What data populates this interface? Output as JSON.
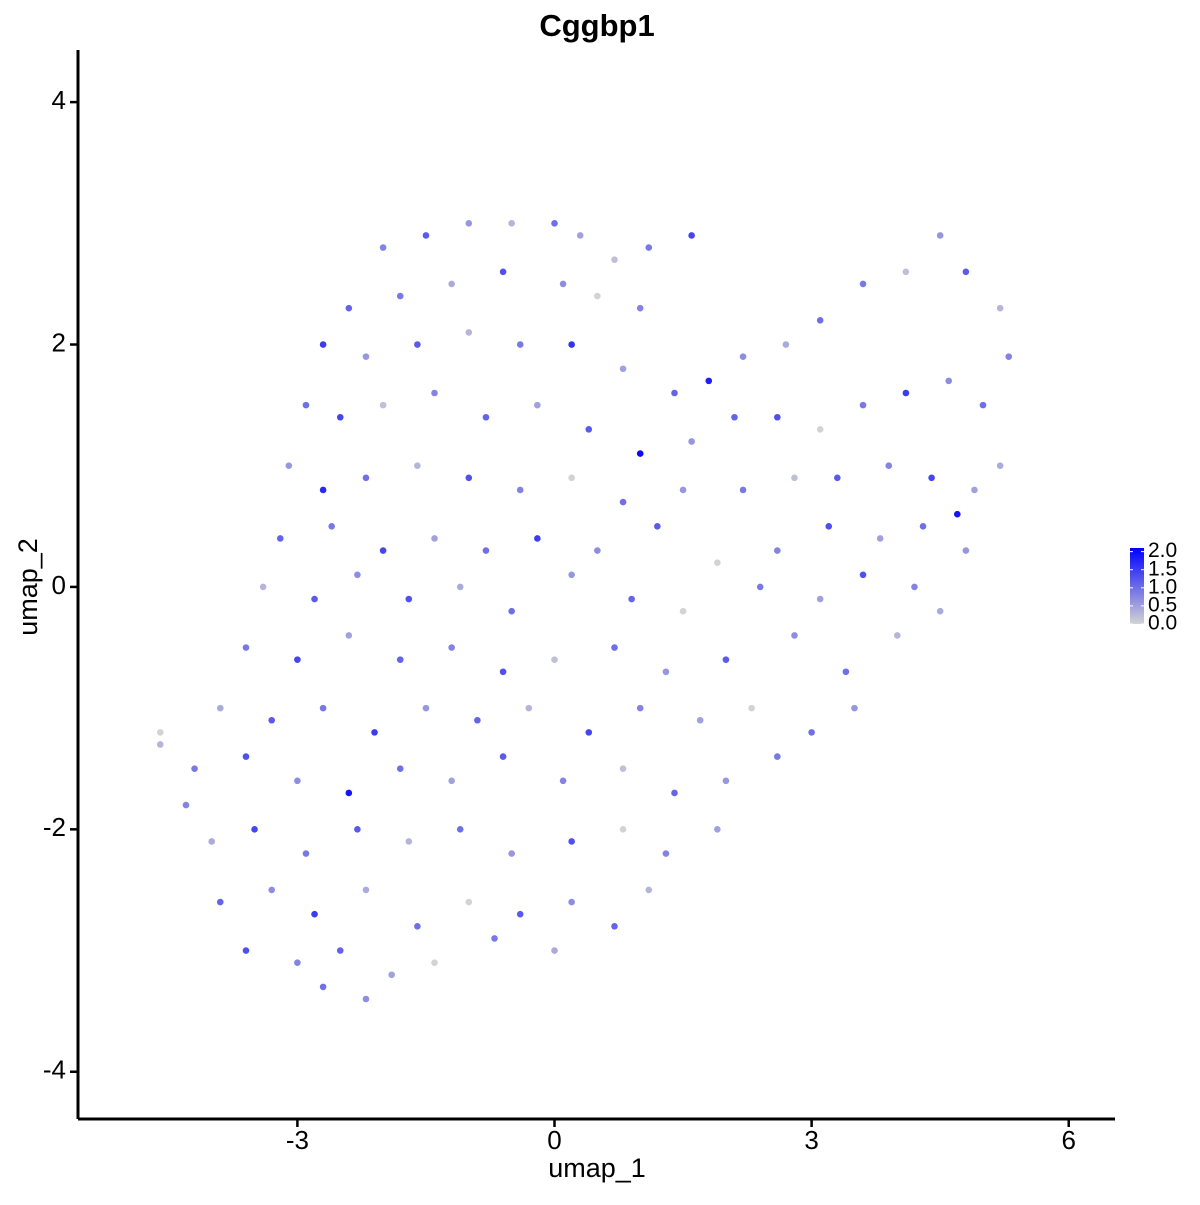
{
  "chart_data": {
    "type": "scatter",
    "title": "Cggbp1",
    "x_label": "umap_1",
    "y_label": "umap_2",
    "xlim": [
      -5.56,
      6.54
    ],
    "ylim": [
      -4.39,
      4.43
    ],
    "xticks": [
      -3,
      0,
      3,
      6
    ],
    "yticks": [
      -4,
      -2,
      0,
      2,
      4
    ],
    "color_scale": {
      "low": "#d3d3d3",
      "high": "#0000ff",
      "lim": [
        0,
        2.1
      ],
      "ticks": [
        {
          "value": 0,
          "label": "0.0"
        },
        {
          "value": 0.5,
          "label": "0.5"
        },
        {
          "value": 1,
          "label": "1.0"
        },
        {
          "value": 1.5,
          "label": "1.5"
        },
        {
          "value": 2,
          "label": "2.0"
        }
      ]
    },
    "x": [
      -2.0,
      -1.5,
      -1.0,
      -0.5,
      0.0,
      0.3,
      0.7,
      1.1,
      1.6,
      -2.4,
      -1.8,
      -1.2,
      -0.6,
      0.1,
      0.5,
      1.0,
      -2.7,
      -2.2,
      -1.6,
      -1.0,
      -0.4,
      0.2,
      0.8,
      1.4,
      1.8,
      2.2,
      2.7,
      3.1,
      3.6,
      4.1,
      4.5,
      4.8,
      5.2,
      5.3,
      -2.9,
      -2.5,
      -2.0,
      -1.4,
      -0.8,
      -0.2,
      0.4,
      1.0,
      1.6,
      2.1,
      2.6,
      3.1,
      3.6,
      4.1,
      4.6,
      5.0,
      5.2,
      -3.1,
      -2.7,
      -2.2,
      -1.6,
      -1.0,
      -0.4,
      0.2,
      0.8,
      1.5,
      2.2,
      2.8,
      3.3,
      3.9,
      4.4,
      4.9,
      4.7,
      -3.2,
      -2.6,
      -2.0,
      -1.4,
      -0.8,
      -0.2,
      0.5,
      1.2,
      1.9,
      2.6,
      3.2,
      3.8,
      4.3,
      4.8,
      -3.4,
      -2.8,
      -2.3,
      -1.7,
      -1.1,
      -0.5,
      0.2,
      0.9,
      1.5,
      2.4,
      3.1,
      3.6,
      4.2,
      4.5,
      -3.6,
      -3.0,
      -2.4,
      -1.8,
      -1.2,
      -0.6,
      0.0,
      0.7,
      1.3,
      2.0,
      2.8,
      3.4,
      4.0,
      -3.9,
      -3.3,
      -2.7,
      -2.1,
      -1.5,
      -0.9,
      -0.3,
      0.4,
      1.0,
      1.7,
      2.3,
      3.0,
      3.5,
      -4.6,
      -4.2,
      -3.6,
      -3.0,
      -2.4,
      -1.8,
      -1.2,
      -0.6,
      0.1,
      0.8,
      1.4,
      2.0,
      2.6,
      -4.3,
      -4.0,
      -3.5,
      -2.9,
      -2.3,
      -1.7,
      -1.1,
      -0.5,
      0.2,
      0.8,
      1.3,
      1.9,
      -3.9,
      -3.3,
      -2.8,
      -2.2,
      -1.6,
      -1.0,
      -0.4,
      0.2,
      0.7,
      1.1,
      -3.6,
      -3.0,
      -2.5,
      -1.9,
      -1.4,
      -0.7,
      0.0,
      -2.2,
      -2.7,
      -4.6
    ],
    "y": [
      2.8,
      2.9,
      3.0,
      3.0,
      3.0,
      2.9,
      2.7,
      2.8,
      2.9,
      2.3,
      2.4,
      2.5,
      2.6,
      2.5,
      2.4,
      2.3,
      2.0,
      1.9,
      2.0,
      2.1,
      2.0,
      2.0,
      1.8,
      1.6,
      1.7,
      1.9,
      2.0,
      2.2,
      2.5,
      2.6,
      2.9,
      2.6,
      2.3,
      1.9,
      1.5,
      1.4,
      1.5,
      1.6,
      1.4,
      1.5,
      1.3,
      1.1,
      1.2,
      1.4,
      1.4,
      1.3,
      1.5,
      1.6,
      1.7,
      1.5,
      1.0,
      1.0,
      0.8,
      0.9,
      1.0,
      0.9,
      0.8,
      0.9,
      0.7,
      0.8,
      0.8,
      0.9,
      0.9,
      1.0,
      0.9,
      0.8,
      0.6,
      0.4,
      0.5,
      0.3,
      0.4,
      0.3,
      0.4,
      0.3,
      0.5,
      0.2,
      0.3,
      0.5,
      0.4,
      0.5,
      0.3,
      0.0,
      -0.1,
      0.1,
      -0.1,
      0.0,
      -0.2,
      0.1,
      -0.1,
      -0.2,
      0.0,
      -0.1,
      0.1,
      0.0,
      -0.2,
      -0.5,
      -0.6,
      -0.4,
      -0.6,
      -0.5,
      -0.7,
      -0.6,
      -0.5,
      -0.7,
      -0.6,
      -0.4,
      -0.7,
      -0.4,
      -1.0,
      -1.1,
      -1.0,
      -1.2,
      -1.0,
      -1.1,
      -1.0,
      -1.2,
      -1.0,
      -1.1,
      -1.0,
      -1.2,
      -1.0,
      -1.3,
      -1.5,
      -1.4,
      -1.6,
      -1.7,
      -1.5,
      -1.6,
      -1.4,
      -1.6,
      -1.5,
      -1.7,
      -1.6,
      -1.4,
      -1.8,
      -2.1,
      -2.0,
      -2.2,
      -2.0,
      -2.1,
      -2.0,
      -2.2,
      -2.1,
      -2.0,
      -2.2,
      -2.0,
      -2.6,
      -2.5,
      -2.7,
      -2.5,
      -2.8,
      -2.6,
      -2.7,
      -2.6,
      -2.8,
      -2.5,
      -3.0,
      -3.1,
      -3.0,
      -3.2,
      -3.1,
      -2.9,
      -3.0,
      -3.4,
      -3.3,
      -1.2
    ],
    "expression": [
      0.8,
      1.2,
      0.6,
      0.3,
      1.0,
      0.5,
      0.2,
      0.9,
      1.4,
      1.1,
      0.9,
      0.4,
      1.3,
      0.7,
      0.0,
      0.8,
      1.5,
      0.6,
      1.2,
      0.3,
      0.9,
      1.6,
      0.5,
      1.1,
      1.8,
      0.7,
      0.4,
      1.0,
      0.9,
      0.2,
      0.6,
      1.2,
      0.3,
      0.8,
      1.0,
      1.4,
      0.2,
      0.8,
      1.1,
      0.5,
      1.2,
      2.0,
      0.6,
      1.1,
      1.3,
      0.0,
      0.9,
      1.5,
      0.7,
      1.0,
      0.4,
      0.6,
      1.7,
      1.0,
      0.3,
      1.3,
      0.8,
      0.0,
      1.0,
      0.6,
      0.9,
      0.2,
      1.2,
      0.8,
      1.4,
      0.5,
      1.9,
      1.1,
      0.9,
      1.4,
      0.5,
      1.0,
      1.5,
      0.7,
      1.2,
      0.0,
      0.8,
      1.3,
      0.5,
      1.0,
      0.6,
      0.3,
      1.2,
      0.7,
      1.3,
      0.4,
      1.0,
      0.6,
      1.1,
      0.0,
      0.9,
      0.5,
      1.3,
      0.8,
      0.4,
      0.9,
      1.4,
      0.5,
      1.1,
      0.8,
      1.3,
      0.2,
      1.0,
      0.6,
      1.2,
      0.7,
      1.0,
      0.3,
      0.4,
      1.2,
      0.9,
      1.5,
      0.6,
      1.1,
      0.3,
      1.4,
      0.8,
      0.5,
      0.0,
      1.0,
      0.6,
      0.3,
      0.9,
      1.3,
      0.7,
      1.9,
      1.0,
      0.5,
      1.2,
      0.8,
      0.2,
      1.1,
      0.6,
      0.9,
      0.8,
      0.4,
      1.4,
      0.9,
      1.2,
      0.3,
      1.0,
      0.6,
      1.3,
      0.0,
      0.8,
      0.5,
      1.1,
      0.7,
      1.5,
      0.4,
      1.0,
      0.0,
      1.2,
      0.7,
      1.1,
      0.3,
      1.3,
      0.8,
      1.1,
      0.5,
      0.0,
      0.9,
      0.4,
      0.7,
      1.0,
      0.0
    ]
  }
}
